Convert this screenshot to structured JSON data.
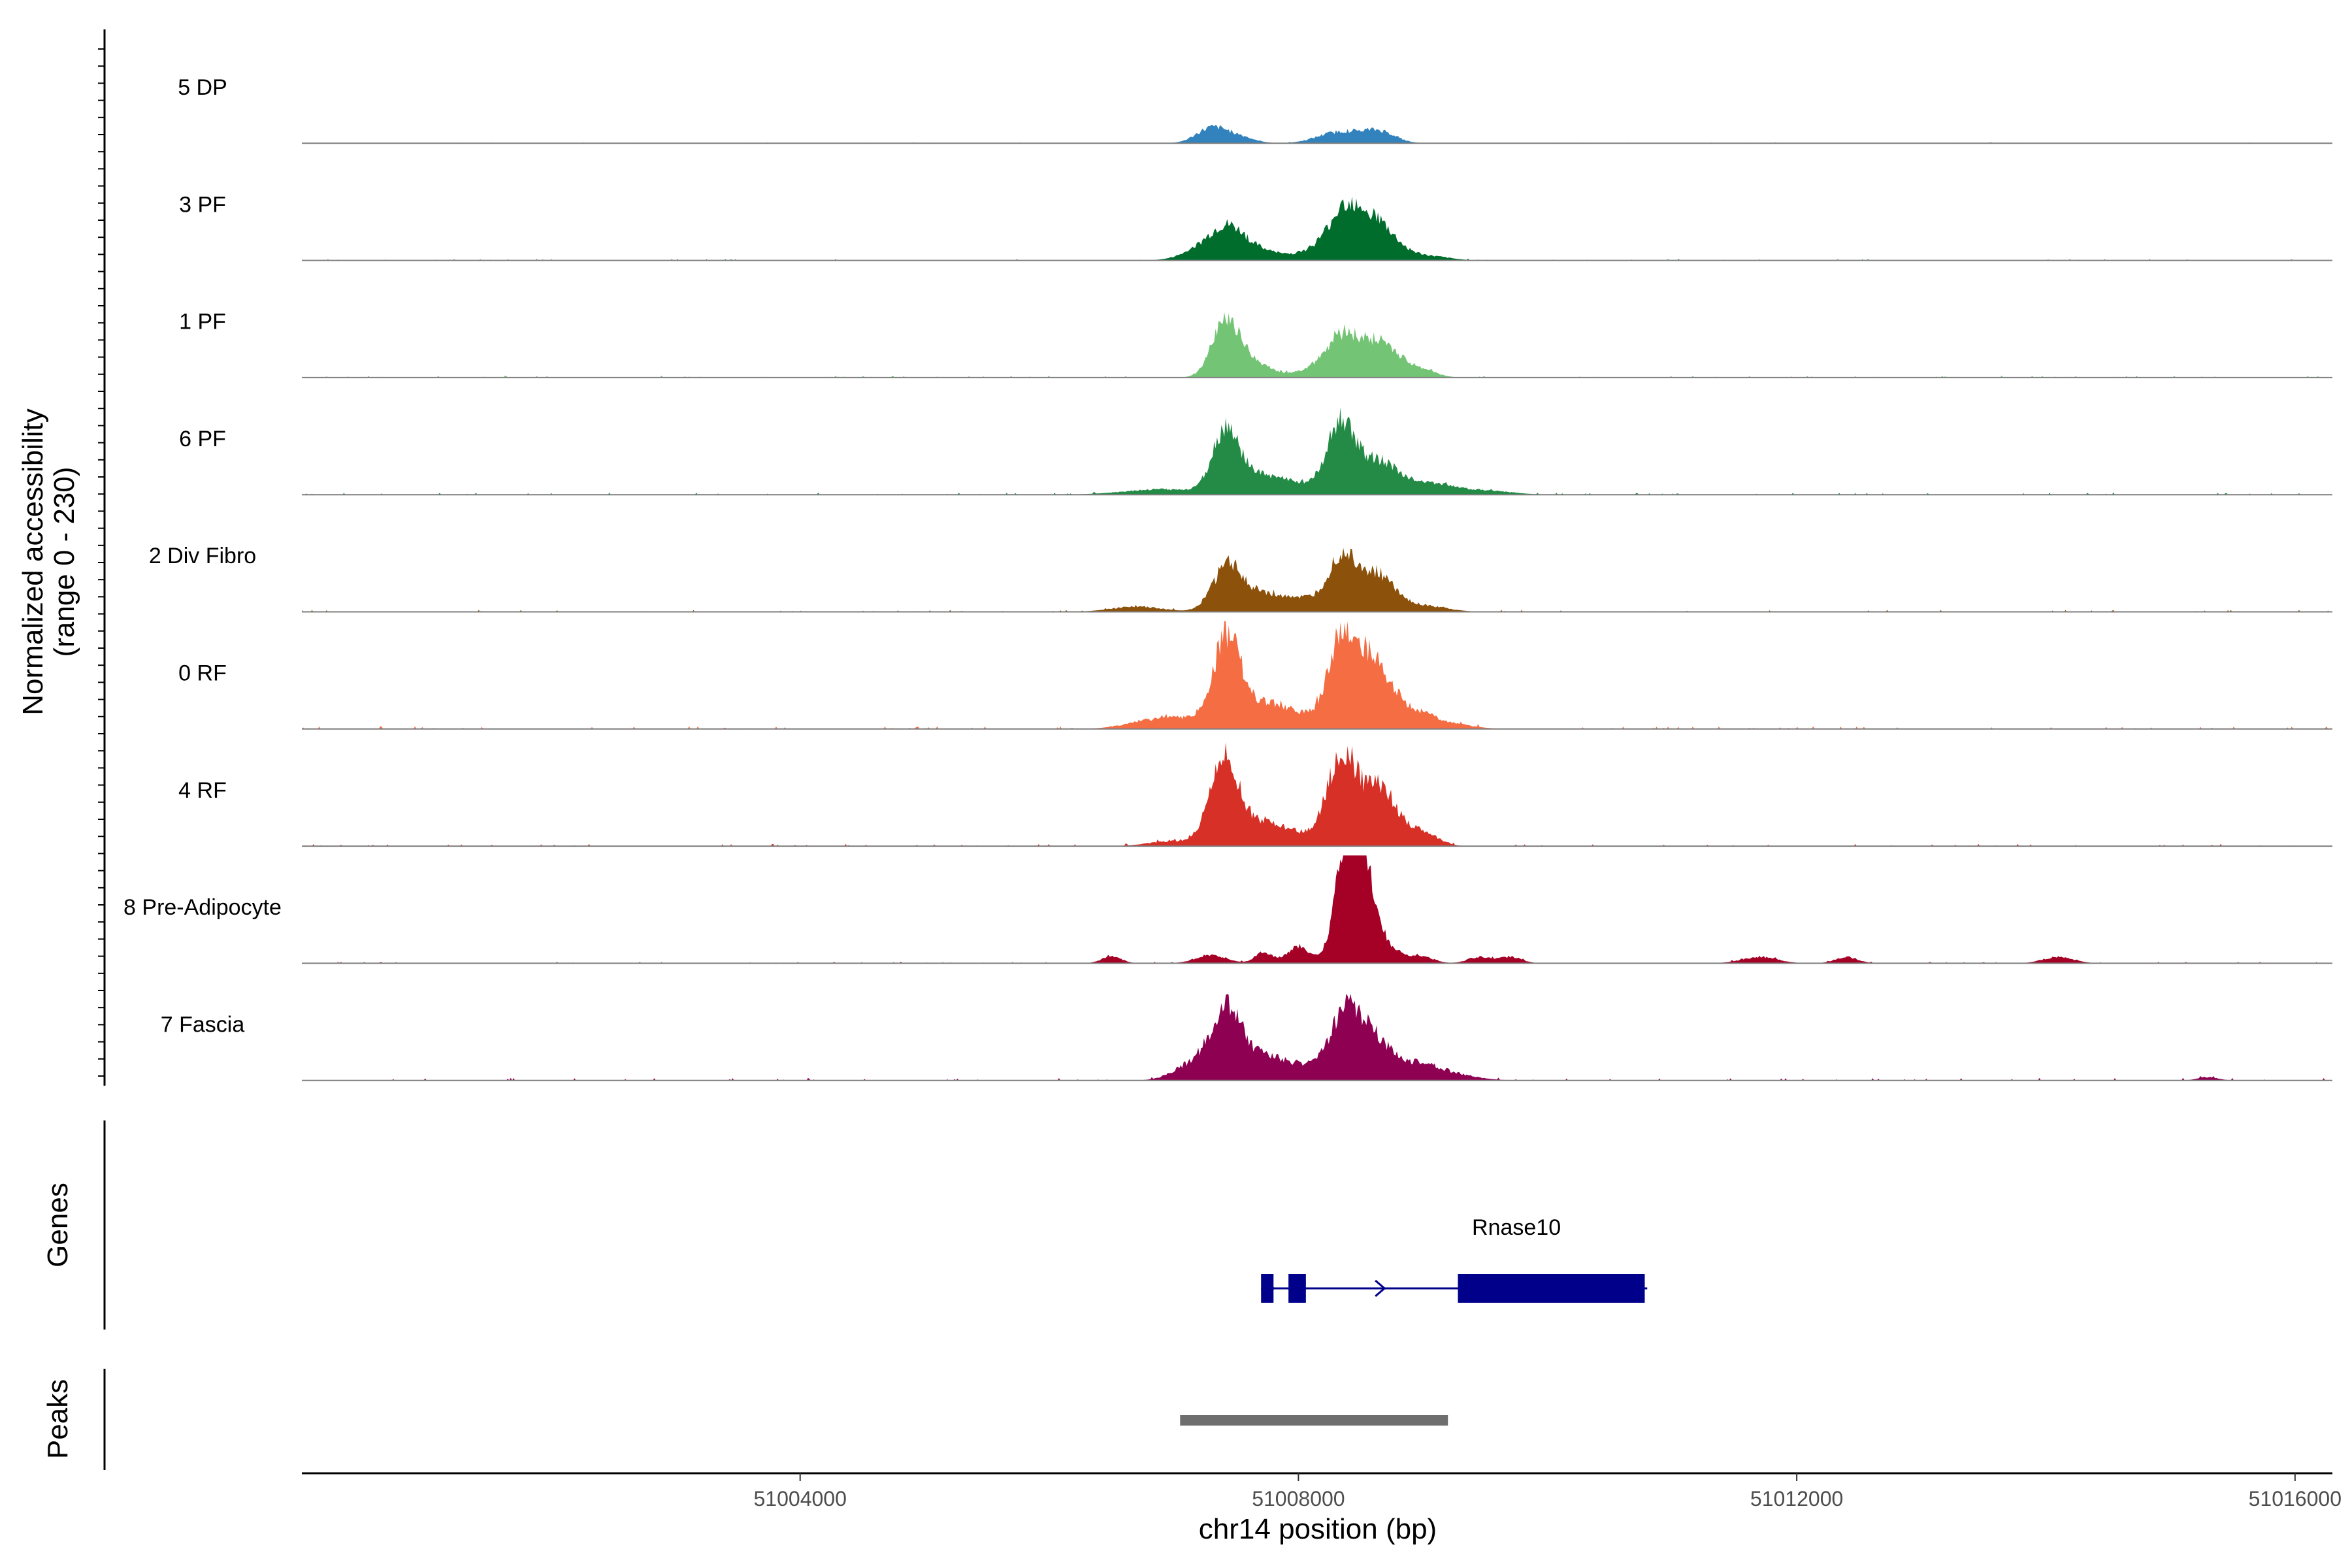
{
  "chart_data": {
    "type": "area",
    "title": "",
    "xlabel": "chr14 position (bp)",
    "ylabel": "Normalized accessibility",
    "ylabel_range": "(range 0 - 230)",
    "ylim": [
      0,
      230
    ],
    "xlim": [
      51000000,
      51016300
    ],
    "x_ticks": [
      51004000,
      51008000,
      51012000,
      51016000
    ],
    "tracks": [
      {
        "name": "5 DP",
        "color": "#3182bd",
        "peaks": [
          [
            51007300,
            0.14,
            120
          ],
          [
            51007520,
            0.06,
            120
          ],
          [
            51008250,
            0.06,
            150
          ],
          [
            51008500,
            0.09,
            180
          ],
          [
            51008680,
            0.06,
            110
          ]
        ],
        "noise": 0.006
      },
      {
        "name": "3 PF",
        "color": "#006d2c",
        "peaks": [
          [
            51007200,
            0.08,
            150
          ],
          [
            51007430,
            0.28,
            140
          ],
          [
            51007700,
            0.08,
            180
          ],
          [
            51008200,
            0.12,
            160
          ],
          [
            51008380,
            0.38,
            120
          ],
          [
            51008600,
            0.33,
            140
          ],
          [
            51008800,
            0.07,
            150
          ],
          [
            51009100,
            0.03,
            140
          ]
        ],
        "noise": 0.008
      },
      {
        "name": "1 PF",
        "color": "#74c476",
        "peaks": [
          [
            51007420,
            0.52,
            110
          ],
          [
            51007650,
            0.12,
            150
          ],
          [
            51008180,
            0.1,
            150
          ],
          [
            51008360,
            0.33,
            120
          ],
          [
            51008650,
            0.33,
            150
          ],
          [
            51008980,
            0.07,
            120
          ]
        ],
        "noise": 0.012
      },
      {
        "name": "6 PF",
        "color": "#238b45",
        "peaks": [
          [
            51006900,
            0.05,
            300
          ],
          [
            51007420,
            0.58,
            110
          ],
          [
            51007700,
            0.15,
            160
          ],
          [
            51008050,
            0.1,
            200
          ],
          [
            51008330,
            0.56,
            100
          ],
          [
            51008550,
            0.3,
            150
          ],
          [
            51008780,
            0.14,
            120
          ],
          [
            51009100,
            0.1,
            160
          ],
          [
            51009500,
            0.04,
            200
          ]
        ],
        "noise": 0.014
      },
      {
        "name": "2 Div Fibro",
        "color": "#8c510a",
        "peaks": [
          [
            51006700,
            0.05,
            200
          ],
          [
            51007430,
            0.4,
            120
          ],
          [
            51007700,
            0.14,
            180
          ],
          [
            51008050,
            0.1,
            200
          ],
          [
            51008350,
            0.46,
            110
          ],
          [
            51008620,
            0.35,
            140
          ],
          [
            51009000,
            0.06,
            180
          ]
        ],
        "noise": 0.012
      },
      {
        "name": "0 RF",
        "color": "#f46d43",
        "peaks": [
          [
            51006800,
            0.07,
            200
          ],
          [
            51007100,
            0.08,
            180
          ],
          [
            51007430,
            0.85,
            110
          ],
          [
            51007750,
            0.22,
            170
          ],
          [
            51008100,
            0.1,
            200
          ],
          [
            51008360,
            0.82,
            110
          ],
          [
            51008620,
            0.6,
            140
          ],
          [
            51008950,
            0.13,
            130
          ],
          [
            51009200,
            0.05,
            180
          ]
        ],
        "noise": 0.016
      },
      {
        "name": "4 RF",
        "color": "#d73027",
        "peaks": [
          [
            51007020,
            0.05,
            200
          ],
          [
            51007400,
            0.8,
            110
          ],
          [
            51007700,
            0.22,
            170
          ],
          [
            51008100,
            0.1,
            200
          ],
          [
            51008350,
            0.8,
            110
          ],
          [
            51008650,
            0.55,
            140
          ],
          [
            51009000,
            0.12,
            120
          ]
        ],
        "noise": 0.014
      },
      {
        "name": "8 Pre-Adipocyte",
        "color": "#a50026",
        "peaks": [
          [
            51006500,
            0.06,
            80
          ],
          [
            51007300,
            0.08,
            120
          ],
          [
            51007720,
            0.1,
            70
          ],
          [
            51008000,
            0.16,
            90
          ],
          [
            51008380,
            0.95,
            90
          ],
          [
            51008520,
            0.85,
            90
          ],
          [
            51008700,
            0.15,
            120
          ],
          [
            51009000,
            0.06,
            90
          ],
          [
            51009450,
            0.06,
            90
          ],
          [
            51009700,
            0.06,
            90
          ],
          [
            51011700,
            0.06,
            140
          ],
          [
            51012400,
            0.06,
            90
          ],
          [
            51014100,
            0.06,
            120
          ]
        ],
        "noise": 0.01
      },
      {
        "name": "7 Fascia",
        "color": "#8e0152",
        "peaks": [
          [
            51007150,
            0.15,
            150
          ],
          [
            51007420,
            0.62,
            120
          ],
          [
            51007700,
            0.2,
            170
          ],
          [
            51008050,
            0.12,
            200
          ],
          [
            51008380,
            0.58,
            120
          ],
          [
            51008620,
            0.35,
            140
          ],
          [
            51008950,
            0.12,
            160
          ],
          [
            51009200,
            0.06,
            200
          ],
          [
            51015300,
            0.03,
            80
          ]
        ],
        "noise": 0.016
      }
    ],
    "genes": [
      {
        "name": "Rnase10",
        "start": 51007700,
        "end": 51010800,
        "strand": "+",
        "exons": [
          [
            51007700,
            51007800
          ],
          [
            51007920,
            51008060
          ],
          [
            51009280,
            51010780
          ]
        ],
        "color": "#00008b"
      }
    ],
    "peaks_track": [
      [
        51007050,
        51009200
      ]
    ],
    "peaks_color": "#6e6e6e",
    "panel_labels": {
      "genes": "Genes",
      "peaks": "Peaks"
    }
  }
}
